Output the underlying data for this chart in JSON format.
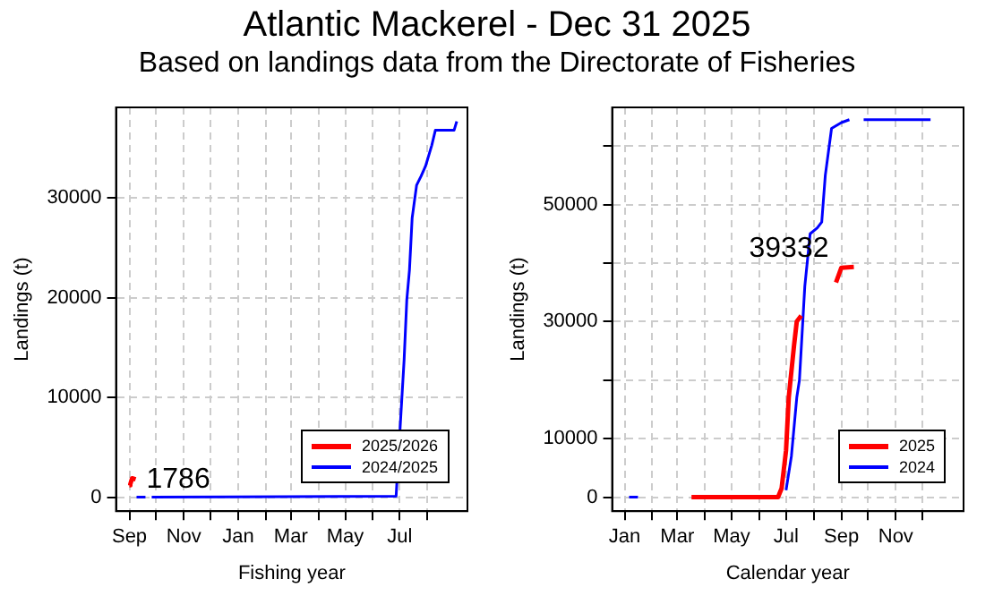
{
  "chart_data": [
    {
      "type": "line",
      "title": "Atlantic Mackerel - Dec 31 2025",
      "subtitle": "Based on landings data from the Directorate of Fisheries",
      "xlabel": "Fishing year",
      "ylabel": "Landings (t)",
      "xlim": [
        "2024-08-17",
        "2025-09-15"
      ],
      "xticks": [
        {
          "value": "2024-09-01",
          "label": "Sep"
        },
        {
          "value": "2024-10-01",
          "label": null
        },
        {
          "value": "2024-11-01",
          "label": "Nov"
        },
        {
          "value": "2024-12-01",
          "label": null
        },
        {
          "value": "2025-01-01",
          "label": "Jan"
        },
        {
          "value": "2025-02-01",
          "label": null
        },
        {
          "value": "2025-03-01",
          "label": "Mar"
        },
        {
          "value": "2025-04-01",
          "label": null
        },
        {
          "value": "2025-05-01",
          "label": "May"
        },
        {
          "value": "2025-06-01",
          "label": null
        },
        {
          "value": "2025-07-01",
          "label": "Jul"
        },
        {
          "value": "2025-08-01",
          "label": null
        }
      ],
      "ylim": [
        -1400,
        39100
      ],
      "yticks": [
        0,
        10000,
        20000,
        30000
      ],
      "grid": true,
      "legend": "bottom right",
      "series": [
        {
          "name": "2025/2026",
          "color": "#ff0000",
          "x": [
            "2024-09-01",
            "2024-09-02",
            "2024-09-04",
            "2024-09-08"
          ],
          "values": [
            1200,
            1300,
            1900,
            1786
          ]
        },
        {
          "name": "2024/2025",
          "color": "#0000ff",
          "x": [
            "2024-09-09",
            "2024-09-19",
            "2024-09-22",
            "2024-09-26",
            "2025-06-27",
            "2025-07-06",
            "2025-07-09",
            "2025-07-12",
            "2025-07-15",
            "2025-07-20",
            "2025-07-25",
            "2025-07-30",
            "2025-08-06",
            "2025-08-10",
            "2025-08-31",
            "2025-09-03"
          ],
          "values": [
            0,
            0,
            null,
            0,
            100,
            13800,
            19800,
            22800,
            28000,
            31300,
            32200,
            33200,
            35300,
            36800,
            36800,
            37700
          ]
        }
      ],
      "annotations": [
        {
          "text": "1786",
          "x": "2024-09-08",
          "y": 1786
        }
      ]
    },
    {
      "type": "line",
      "xlabel": "Calendar year",
      "ylabel": "Landings (t)",
      "xlim": [
        "2024-12-18",
        "2026-01-16"
      ],
      "xticks": [
        {
          "value": "2025-01-01",
          "label": "Jan"
        },
        {
          "value": "2025-02-01",
          "label": null
        },
        {
          "value": "2025-03-01",
          "label": "Mar"
        },
        {
          "value": "2025-04-01",
          "label": null
        },
        {
          "value": "2025-05-01",
          "label": "May"
        },
        {
          "value": "2025-06-01",
          "label": null
        },
        {
          "value": "2025-07-01",
          "label": "Jul"
        },
        {
          "value": "2025-08-01",
          "label": null
        },
        {
          "value": "2025-09-01",
          "label": "Sep"
        },
        {
          "value": "2025-10-01",
          "label": null
        },
        {
          "value": "2025-11-01",
          "label": "Nov"
        },
        {
          "value": "2025-12-01",
          "label": null
        }
      ],
      "ylim": [
        -2400,
        66600
      ],
      "yticks": [
        0,
        10000,
        {
          "value": 20000,
          "label": null
        },
        30000,
        {
          "value": 40000,
          "label": null
        },
        50000,
        {
          "value": 60000,
          "label": null
        }
      ],
      "grid": true,
      "legend": "bottom right",
      "series": [
        {
          "name": "2025",
          "color": "#ff0000",
          "x": [
            "2025-03-17",
            "2025-06-22",
            "2025-06-26",
            "2025-07-01",
            "2025-07-04",
            "2025-07-10",
            "2025-07-13",
            "2025-07-18",
            "2025-08-07",
            "2025-08-26",
            "2025-09-01",
            "2025-09-15"
          ],
          "values": [
            0,
            0,
            1500,
            8000,
            17000,
            26000,
            30000,
            31000,
            null,
            36700,
            39200,
            39332
          ]
        },
        {
          "name": "2024",
          "color": "#0000ff",
          "x": [
            "2025-01-06",
            "2025-01-16",
            "2025-02-01",
            "2025-07-01",
            "2025-07-07",
            "2025-07-13",
            "2025-07-16",
            "2025-07-22",
            "2025-07-28",
            "2025-08-05",
            "2025-08-10",
            "2025-08-14",
            "2025-08-21",
            "2025-09-01",
            "2025-09-10",
            "2025-09-18",
            "2025-09-26",
            "2025-12-10"
          ],
          "values": [
            0,
            0,
            null,
            1200,
            7000,
            17000,
            20000,
            36000,
            45000,
            46000,
            47000,
            55000,
            63000,
            64000,
            64500,
            null,
            64500,
            64500
          ]
        }
      ],
      "annotations": [
        {
          "text": "39332",
          "x": "2025-09-15",
          "y": 39332
        }
      ]
    }
  ]
}
